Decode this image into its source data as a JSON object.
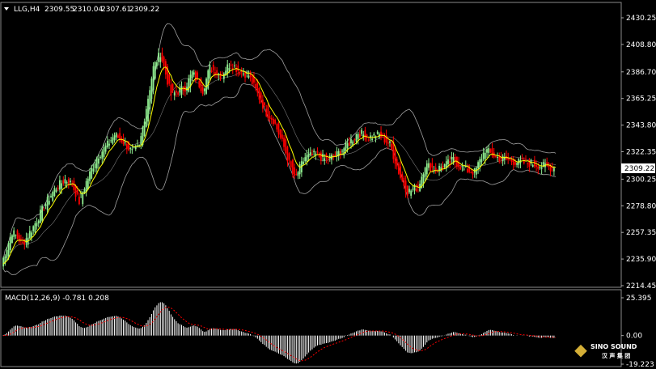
{
  "header": {
    "symbol": "LLG,H4",
    "open": "2309.55",
    "high": "2310.04",
    "low": "2307.61",
    "close": "2309.22"
  },
  "macd_label": "MACD(12,26,9) -0.781 0.208",
  "logo": {
    "en": "SINO SOUND",
    "cn": "汉 声 集 团"
  },
  "colors": {
    "background": "#000000",
    "bull": "#90ee90",
    "bear": "#ff0000",
    "ma": "#ffff00",
    "band": "#a0a0a0",
    "macd_hist": "#ffffff",
    "macd_signal": "#ff0000",
    "price_tag": "#ffffff"
  },
  "chart_data": [
    {
      "type": "candlestick",
      "overlays": [
        "bollinger-bands",
        "moving-average"
      ],
      "y_ticks": [
        "2430.25",
        "2408.80",
        "2386.70",
        "2365.25",
        "2343.80",
        "2322.35",
        "2300.25",
        "2278.80",
        "2257.35",
        "2235.90",
        "2214.45"
      ],
      "ylim": [
        2214.45,
        2430.25
      ],
      "current_price": "2309.22",
      "close_path": [
        [
          0,
          2232
        ],
        [
          6,
          2258
        ],
        [
          12,
          2248
        ],
        [
          18,
          2262
        ],
        [
          24,
          2278
        ],
        [
          30,
          2292
        ],
        [
          36,
          2300
        ],
        [
          40,
          2296
        ],
        [
          44,
          2282
        ],
        [
          48,
          2298
        ],
        [
          54,
          2318
        ],
        [
          60,
          2328
        ],
        [
          64,
          2336
        ],
        [
          68,
          2332
        ],
        [
          74,
          2322
        ],
        [
          78,
          2326
        ],
        [
          86,
          2390
        ],
        [
          90,
          2402
        ],
        [
          96,
          2368
        ],
        [
          104,
          2374
        ],
        [
          108,
          2386
        ],
        [
          114,
          2372
        ],
        [
          118,
          2390
        ],
        [
          124,
          2384
        ],
        [
          130,
          2394
        ],
        [
          134,
          2388
        ],
        [
          140,
          2384
        ],
        [
          150,
          2354
        ],
        [
          154,
          2348
        ],
        [
          160,
          2326
        ],
        [
          166,
          2300
        ],
        [
          172,
          2318
        ],
        [
          178,
          2320
        ],
        [
          184,
          2316
        ],
        [
          190,
          2320
        ],
        [
          196,
          2328
        ],
        [
          202,
          2338
        ],
        [
          208,
          2334
        ],
        [
          214,
          2336
        ],
        [
          220,
          2328
        ],
        [
          226,
          2302
        ],
        [
          230,
          2290
        ],
        [
          236,
          2294
        ],
        [
          240,
          2312
        ],
        [
          246,
          2308
        ],
        [
          252,
          2312
        ],
        [
          256,
          2316
        ],
        [
          262,
          2308
        ],
        [
          268,
          2306
        ],
        [
          274,
          2324
        ],
        [
          280,
          2318
        ],
        [
          286,
          2316
        ],
        [
          292,
          2314
        ],
        [
          300,
          2313
        ],
        [
          306,
          2311
        ],
        [
          313,
          2309.22
        ]
      ]
    },
    {
      "type": "bar",
      "name": "MACD(12,26,9)",
      "macd": "-0.781",
      "signal": "0.208",
      "y_ticks": [
        "25.395",
        "0.00",
        "-19.223"
      ],
      "ylim": [
        -19.223,
        25.395
      ]
    }
  ]
}
